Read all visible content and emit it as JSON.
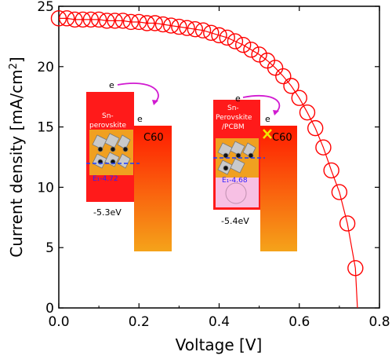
{
  "chart_data": {
    "type": "scatter",
    "xlabel": "Voltage [V]",
    "ylabel": "Current density [mA/cm",
    "ylabel_sup": "2",
    "ylabel_end": "]",
    "xlim": [
      0.0,
      0.8
    ],
    "ylim": [
      0,
      25
    ],
    "x_ticks": [
      "0.0",
      "0.2",
      "0.4",
      "0.6",
      "0.8"
    ],
    "y_ticks": [
      "0",
      "5",
      "10",
      "15",
      "20",
      "25"
    ],
    "marker_color": "#ff0000",
    "series": [
      {
        "x": [
          0.0,
          0.02,
          0.04,
          0.06,
          0.08,
          0.1,
          0.12,
          0.14,
          0.16,
          0.18,
          0.2,
          0.22,
          0.24,
          0.26,
          0.28,
          0.3,
          0.32,
          0.34,
          0.36,
          0.38,
          0.4,
          0.42,
          0.44,
          0.46,
          0.48,
          0.5,
          0.52,
          0.54,
          0.56,
          0.58,
          0.6,
          0.62,
          0.64,
          0.66,
          0.68,
          0.7,
          0.72,
          0.74
        ],
        "y": [
          24.0,
          24.0,
          23.9,
          23.9,
          23.9,
          23.9,
          23.8,
          23.8,
          23.8,
          23.7,
          23.7,
          23.6,
          23.6,
          23.5,
          23.4,
          23.3,
          23.2,
          23.1,
          23.0,
          22.8,
          22.6,
          22.4,
          22.1,
          21.8,
          21.4,
          21.0,
          20.5,
          19.9,
          19.2,
          18.4,
          17.4,
          16.2,
          14.9,
          13.3,
          11.4,
          9.6,
          7.0,
          3.3
        ]
      }
    ]
  },
  "inset_left": {
    "electron_top": "e",
    "electron_side": "e",
    "material_line1": "Sn-",
    "material_line2": "perovskite",
    "fermi_label": "E₁-4.72",
    "acceptor": "C60",
    "energy": "-5.3eV"
  },
  "inset_right": {
    "electron_top": "e",
    "electron_side": "e",
    "material_line1": "Sn-",
    "material_line2": "Perovskite",
    "material_line3": "/PCBM",
    "fermi_label": "E₁-4.68",
    "acceptor": "C60",
    "energy": "-5.4eV"
  }
}
